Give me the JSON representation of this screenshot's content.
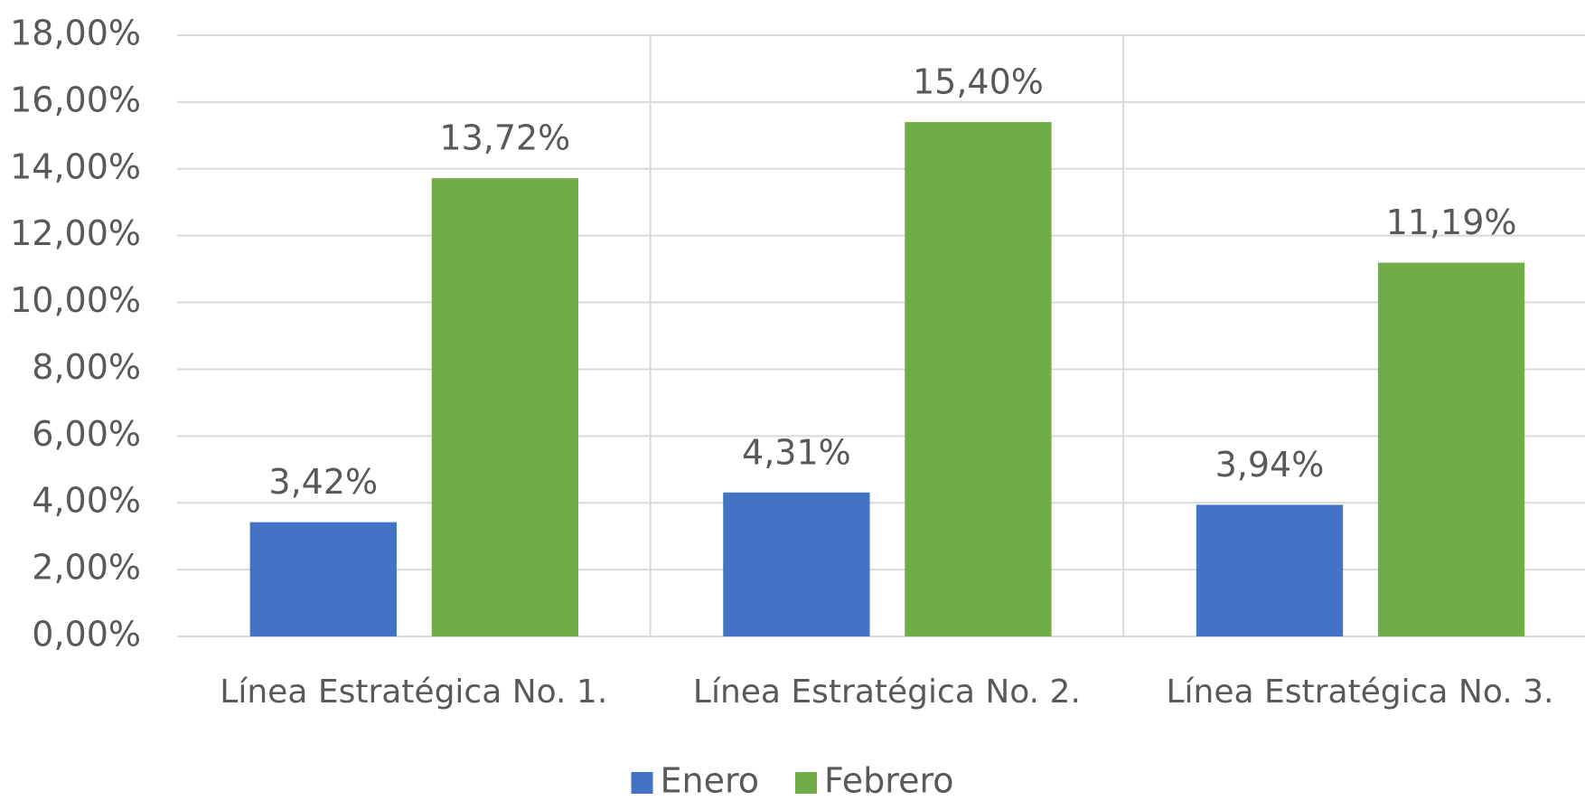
{
  "chart_data": {
    "type": "bar",
    "categories": [
      "Línea Estratégica No. 1.",
      "Línea Estratégica No. 2.",
      "Línea Estratégica No. 3."
    ],
    "series": [
      {
        "name": "Enero",
        "color": "#4472c4",
        "values": [
          3.42,
          4.31,
          3.94
        ],
        "value_labels": [
          "3,42%",
          "4,31%",
          "3,94%"
        ]
      },
      {
        "name": "Febrero",
        "color": "#70ad47",
        "values": [
          13.72,
          15.4,
          11.19
        ],
        "value_labels": [
          "13,72%",
          "15,40%",
          "11,19%"
        ]
      }
    ],
    "ylim": [
      0,
      18
    ],
    "yticks": [
      {
        "value": 0,
        "label": "0,00%"
      },
      {
        "value": 2,
        "label": "2,00%"
      },
      {
        "value": 4,
        "label": "4,00%"
      },
      {
        "value": 6,
        "label": "6,00%"
      },
      {
        "value": 8,
        "label": "8,00%"
      },
      {
        "value": 10,
        "label": "10,00%"
      },
      {
        "value": 12,
        "label": "12,00%"
      },
      {
        "value": 14,
        "label": "14,00%"
      },
      {
        "value": 16,
        "label": "16,00%"
      },
      {
        "value": 18,
        "label": "18,00%"
      }
    ],
    "grid": true,
    "legend": "bottom"
  }
}
